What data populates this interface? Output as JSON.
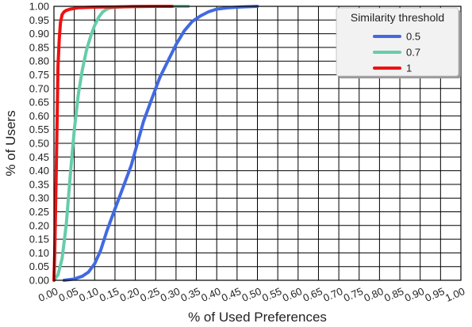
{
  "chart_data": {
    "type": "line",
    "xlabel": "% of Used Preferences",
    "ylabel": "% of Users",
    "xlim": [
      0,
      1
    ],
    "ylim": [
      0,
      1
    ],
    "x_ticks": [
      "0.00",
      "0.05",
      "0.10",
      "0.15",
      "0.20",
      "0.25",
      "0.30",
      "0.35",
      "0.40",
      "0.45",
      "0.50",
      "0.55",
      "0.60",
      "0.65",
      "0.70",
      "0.75",
      "0.80",
      "0.85",
      "0.90",
      "0.95",
      "1.00"
    ],
    "y_ticks": [
      "0.00",
      "0.05",
      "0.10",
      "0.15",
      "0.20",
      "0.25",
      "0.30",
      "0.35",
      "0.40",
      "0.45",
      "0.50",
      "0.55",
      "0.60",
      "0.65",
      "0.70",
      "0.75",
      "0.80",
      "0.85",
      "0.90",
      "0.95",
      "1.00"
    ],
    "grid": true,
    "legend": {
      "title": "Similarity threshold",
      "placement": "top-right"
    },
    "series": [
      {
        "name": "0.5",
        "color": "#4169e1",
        "x": [
          0.025,
          0.05,
          0.07,
          0.085,
          0.1,
          0.115,
          0.13,
          0.15,
          0.17,
          0.19,
          0.205,
          0.22,
          0.24,
          0.26,
          0.28,
          0.3,
          0.32,
          0.34,
          0.36,
          0.38,
          0.4,
          0.43,
          0.46,
          0.5
        ],
        "y": [
          0.0,
          0.005,
          0.015,
          0.03,
          0.06,
          0.11,
          0.18,
          0.26,
          0.34,
          0.42,
          0.5,
          0.58,
          0.66,
          0.74,
          0.8,
          0.86,
          0.91,
          0.945,
          0.965,
          0.98,
          0.99,
          0.995,
          0.998,
          1.0
        ]
      },
      {
        "name": "0.7",
        "color": "#66ccaa",
        "x": [
          0.0,
          0.01,
          0.02,
          0.03,
          0.04,
          0.05,
          0.06,
          0.07,
          0.08,
          0.09,
          0.1,
          0.11,
          0.12,
          0.13,
          0.14,
          0.16,
          0.2,
          0.25,
          0.3,
          0.33
        ],
        "y": [
          0.0,
          0.02,
          0.08,
          0.2,
          0.38,
          0.55,
          0.68,
          0.77,
          0.84,
          0.89,
          0.93,
          0.96,
          0.98,
          0.99,
          0.995,
          0.998,
          1.0,
          1.0,
          1.0,
          1.0
        ]
      },
      {
        "name": "1",
        "color": "#ee1111",
        "x": [
          0.0,
          0.002,
          0.005,
          0.008,
          0.01,
          0.013,
          0.016,
          0.02,
          0.025,
          0.03,
          0.04,
          0.06,
          0.1,
          0.15,
          0.2,
          0.25,
          0.29
        ],
        "y": [
          0.0,
          0.1,
          0.35,
          0.6,
          0.78,
          0.88,
          0.94,
          0.97,
          0.98,
          0.985,
          0.99,
          0.995,
          0.997,
          0.998,
          0.999,
          1.0,
          1.0
        ]
      }
    ]
  }
}
